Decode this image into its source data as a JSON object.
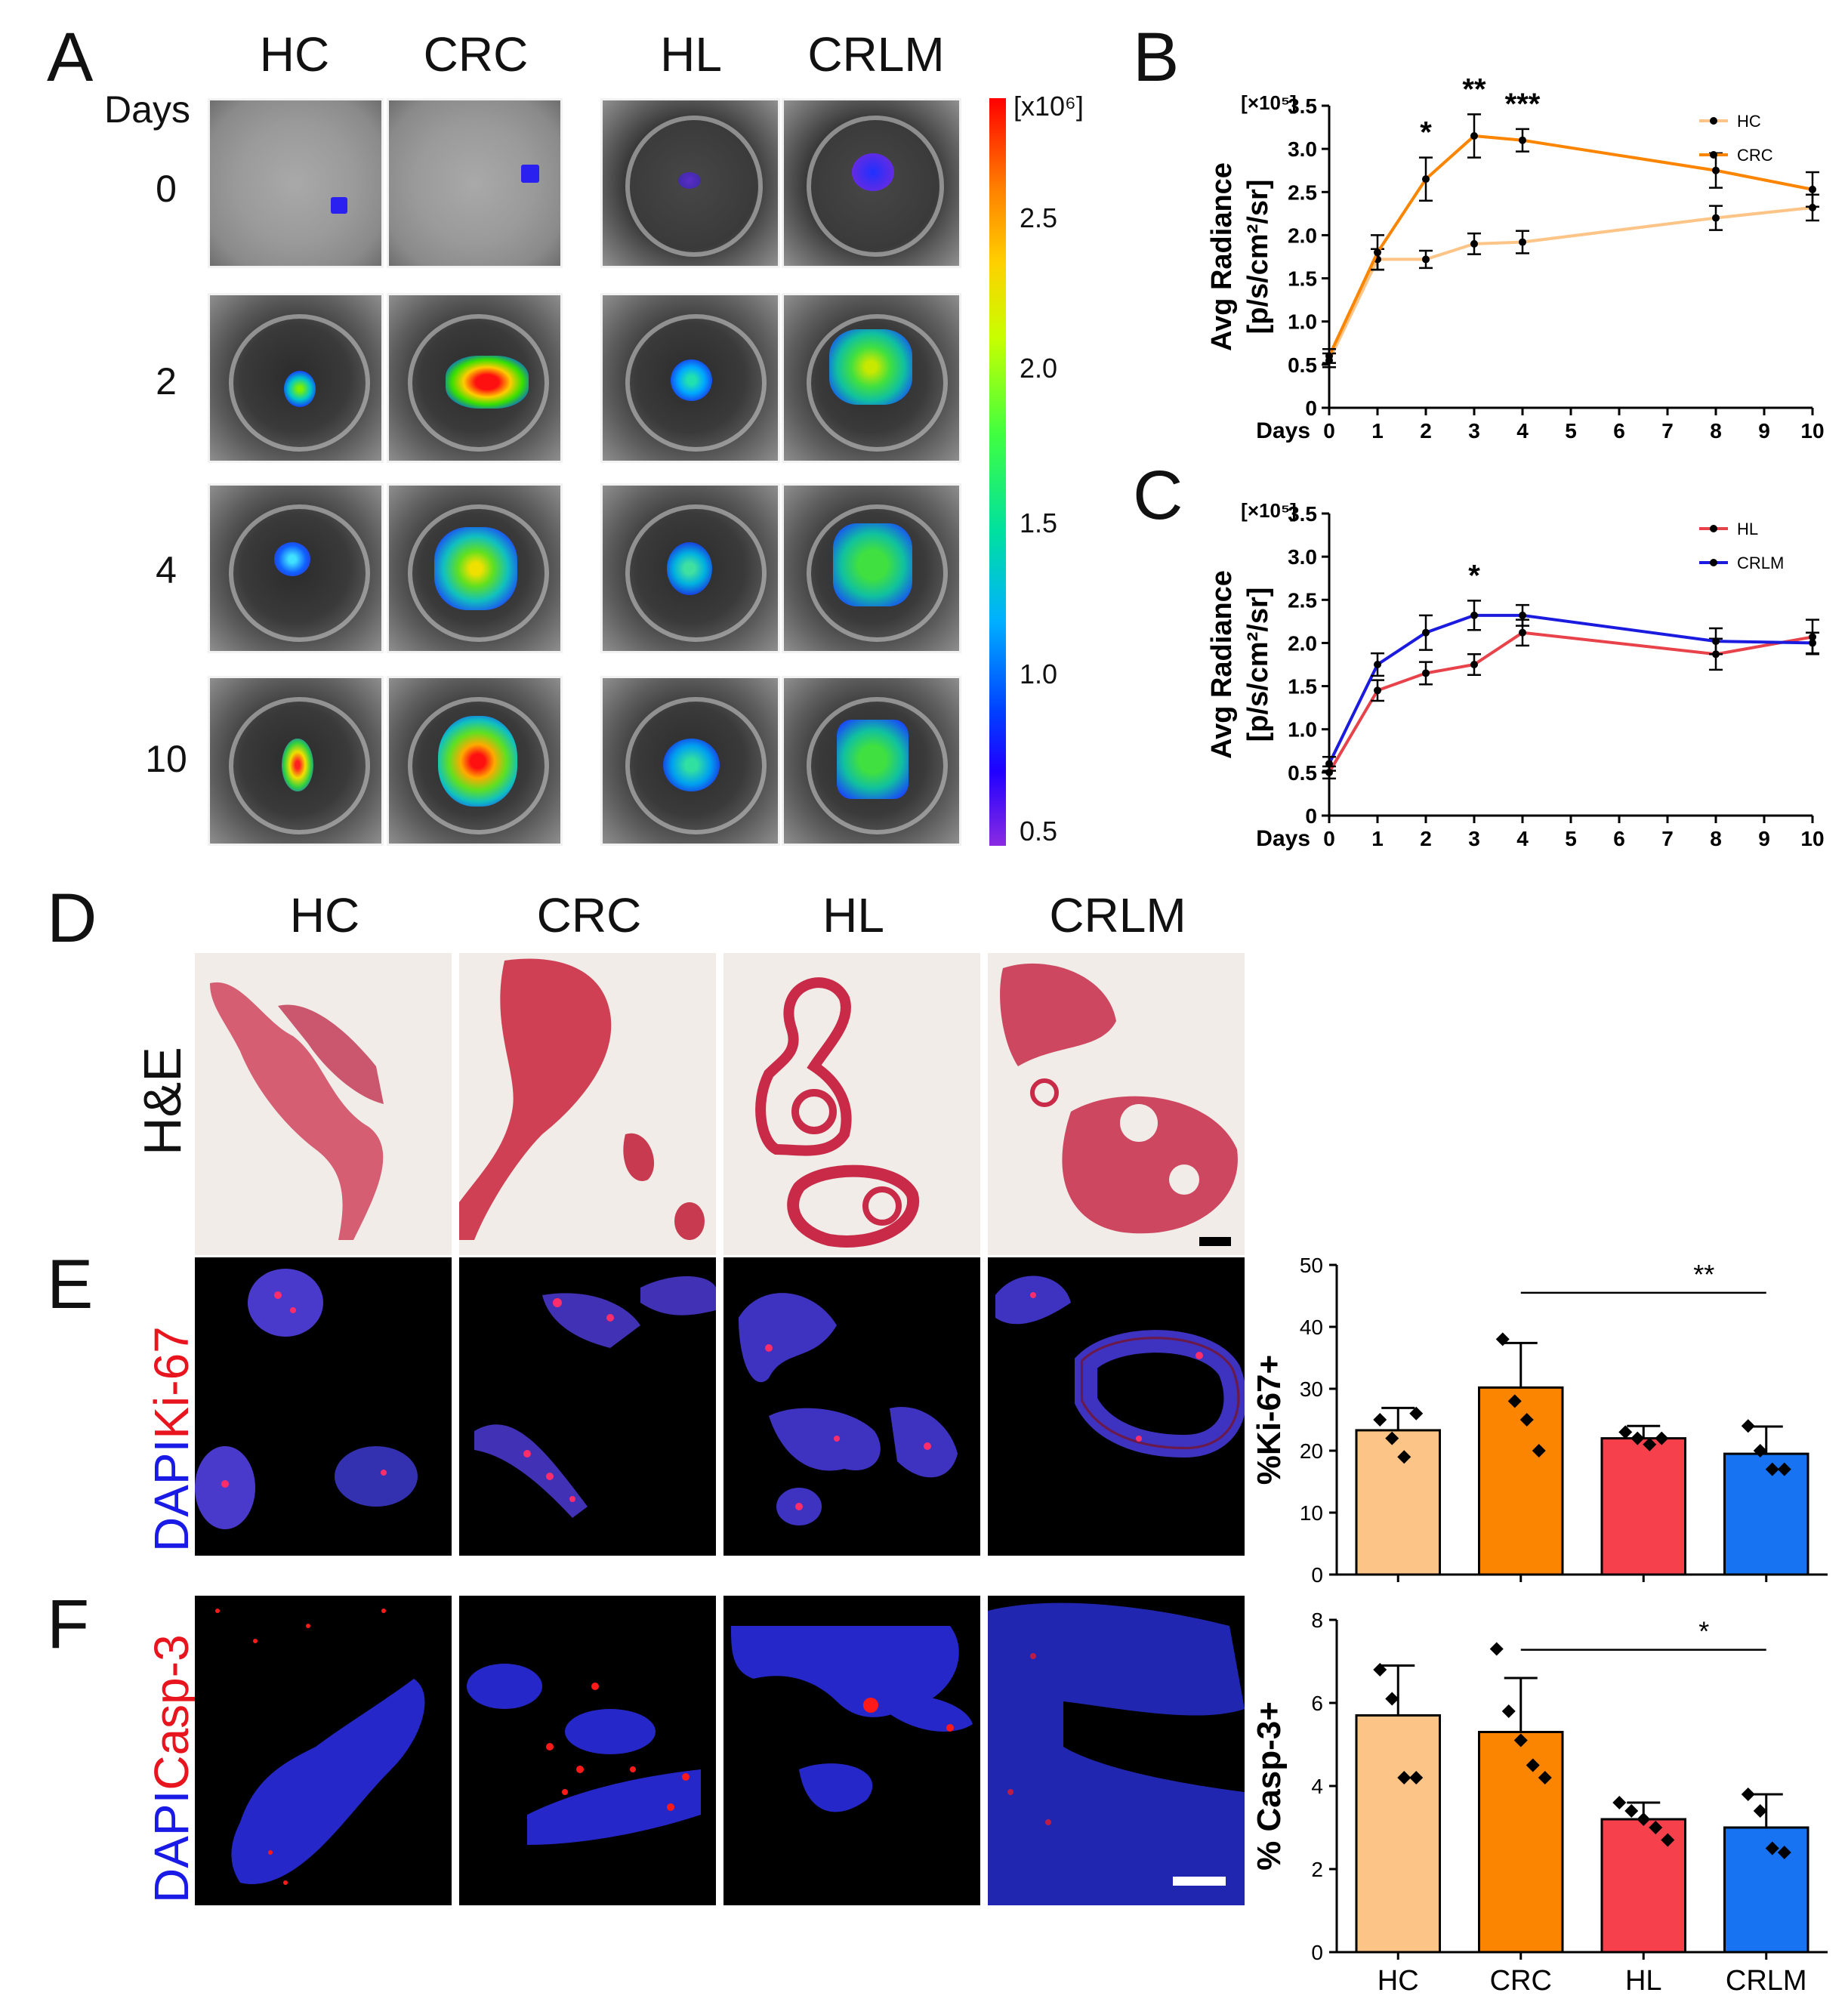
{
  "panel_labels": {
    "A": "A",
    "B": "B",
    "C": "C",
    "D": "D",
    "E": "E",
    "F": "F"
  },
  "panelA": {
    "headers": [
      "HC",
      "CRC",
      "HL",
      "CRLM"
    ],
    "days_label": "Days",
    "days": [
      "0",
      "2",
      "4",
      "10"
    ],
    "colorbar": {
      "unit": "[x10⁶]",
      "ticks": [
        "2.5",
        "2.0",
        "1.5",
        "1.0",
        "0.5"
      ]
    }
  },
  "panelD": {
    "headers": [
      "HC",
      "CRC",
      "HL",
      "CRLM"
    ],
    "row_label": "H&E"
  },
  "panelE": {
    "row_label_a": "DAPI",
    "row_label_b": "Ki-67"
  },
  "panelF": {
    "row_label_a": "DAPI",
    "row_label_b": "Casp-3"
  },
  "colors": {
    "HC": "#fcc486",
    "CRC": "#fb8500",
    "HL": "#f6414c",
    "CRLM": "#1773f2",
    "HLline": "#e8434a",
    "CRLMline": "#1b1be0"
  },
  "chart_data": [
    {
      "id": "B",
      "type": "line",
      "unit_label": "[×10⁵]",
      "ylabel_line1": "Avg Radiance",
      "ylabel_line2": "[p/s/cm²/sr]",
      "xlabel": "Days",
      "x_ticks": [
        "0",
        "1",
        "2",
        "3",
        "4",
        "5",
        "6",
        "7",
        "8",
        "9",
        "10"
      ],
      "y_ticks": [
        "0",
        "0.5",
        "1.0",
        "1.5",
        "2.0",
        "2.5",
        "3.0",
        "3.5"
      ],
      "xlim": [
        0,
        10
      ],
      "ylim": [
        0,
        3.5
      ],
      "legend": "top-right",
      "series": [
        {
          "name": "HC",
          "x": [
            0,
            1,
            2,
            3,
            4,
            8,
            10
          ],
          "y": [
            0.55,
            1.72,
            1.72,
            1.9,
            1.92,
            2.2,
            2.32
          ],
          "err": [
            0.08,
            0.12,
            0.1,
            0.12,
            0.13,
            0.14,
            0.15
          ]
        },
        {
          "name": "CRC",
          "x": [
            0,
            1,
            2,
            3,
            4,
            8,
            10
          ],
          "y": [
            0.6,
            1.8,
            2.65,
            3.15,
            3.1,
            2.75,
            2.53
          ],
          "err": [
            0.08,
            0.2,
            0.25,
            0.25,
            0.13,
            0.2,
            0.2
          ]
        }
      ],
      "annotations": [
        {
          "x": 2,
          "text": "*"
        },
        {
          "x": 3,
          "text": "**"
        },
        {
          "x": 4,
          "text": "***"
        }
      ]
    },
    {
      "id": "C",
      "type": "line",
      "unit_label": "[×10⁵]",
      "ylabel_line1": "Avg Radiance",
      "ylabel_line2": "[p/s/cm²/sr]",
      "xlabel": "Days",
      "x_ticks": [
        "0",
        "1",
        "2",
        "3",
        "4",
        "5",
        "6",
        "7",
        "8",
        "9",
        "10"
      ],
      "y_ticks": [
        "0",
        "0.5",
        "1.0",
        "1.5",
        "2.0",
        "2.5",
        "3.0",
        "3.5"
      ],
      "xlim": [
        0,
        10
      ],
      "ylim": [
        0,
        3.5
      ],
      "legend": "top-right",
      "series": [
        {
          "name": "HL",
          "x": [
            0,
            1,
            2,
            3,
            4,
            8,
            10
          ],
          "y": [
            0.5,
            1.45,
            1.65,
            1.75,
            2.12,
            1.87,
            2.07
          ],
          "err": [
            0.07,
            0.12,
            0.13,
            0.12,
            0.15,
            0.18,
            0.2
          ]
        },
        {
          "name": "CRLM",
          "x": [
            0,
            1,
            2,
            3,
            4,
            8,
            10
          ],
          "y": [
            0.6,
            1.75,
            2.12,
            2.32,
            2.32,
            2.02,
            2.0
          ],
          "err": [
            0.08,
            0.13,
            0.2,
            0.17,
            0.12,
            0.15,
            0.12
          ]
        }
      ],
      "annotations": [
        {
          "x": 3,
          "text": "*"
        }
      ]
    },
    {
      "id": "E",
      "type": "bar",
      "ylabel": "%Ki-67+",
      "categories": [
        "HC",
        "CRC",
        "HL",
        "CRLM"
      ],
      "values": [
        23.3,
        30.2,
        22.0,
        19.5
      ],
      "err": [
        3.6,
        7.2,
        2.0,
        4.4
      ],
      "points": [
        [
          25,
          22,
          19,
          26
        ],
        [
          38,
          28,
          25,
          20
        ],
        [
          23,
          22,
          21,
          22
        ],
        [
          24,
          20,
          17,
          17
        ]
      ],
      "y_ticks": [
        "0",
        "10",
        "20",
        "30",
        "40",
        "50"
      ],
      "ylim": [
        0,
        50
      ],
      "significance": {
        "from": "CRC",
        "to": "CRLM",
        "text": "**"
      }
    },
    {
      "id": "F",
      "type": "bar",
      "ylabel": "% Casp-3+",
      "categories": [
        "HC",
        "CRC",
        "HL",
        "CRLM"
      ],
      "values": [
        5.7,
        5.3,
        3.2,
        3.0
      ],
      "err": [
        1.2,
        1.3,
        0.4,
        0.8
      ],
      "points": [
        [
          6.8,
          6.1,
          4.2,
          4.2
        ],
        [
          7.3,
          5.8,
          5.1,
          4.5,
          4.2
        ],
        [
          3.6,
          3.4,
          3.2,
          3.0,
          2.7
        ],
        [
          3.8,
          3.4,
          2.5,
          2.4
        ]
      ],
      "y_ticks": [
        "0",
        "2",
        "4",
        "6",
        "8"
      ],
      "ylim": [
        0,
        8
      ],
      "significance": {
        "from": "CRC",
        "to": "CRLM",
        "text": "*"
      }
    }
  ]
}
